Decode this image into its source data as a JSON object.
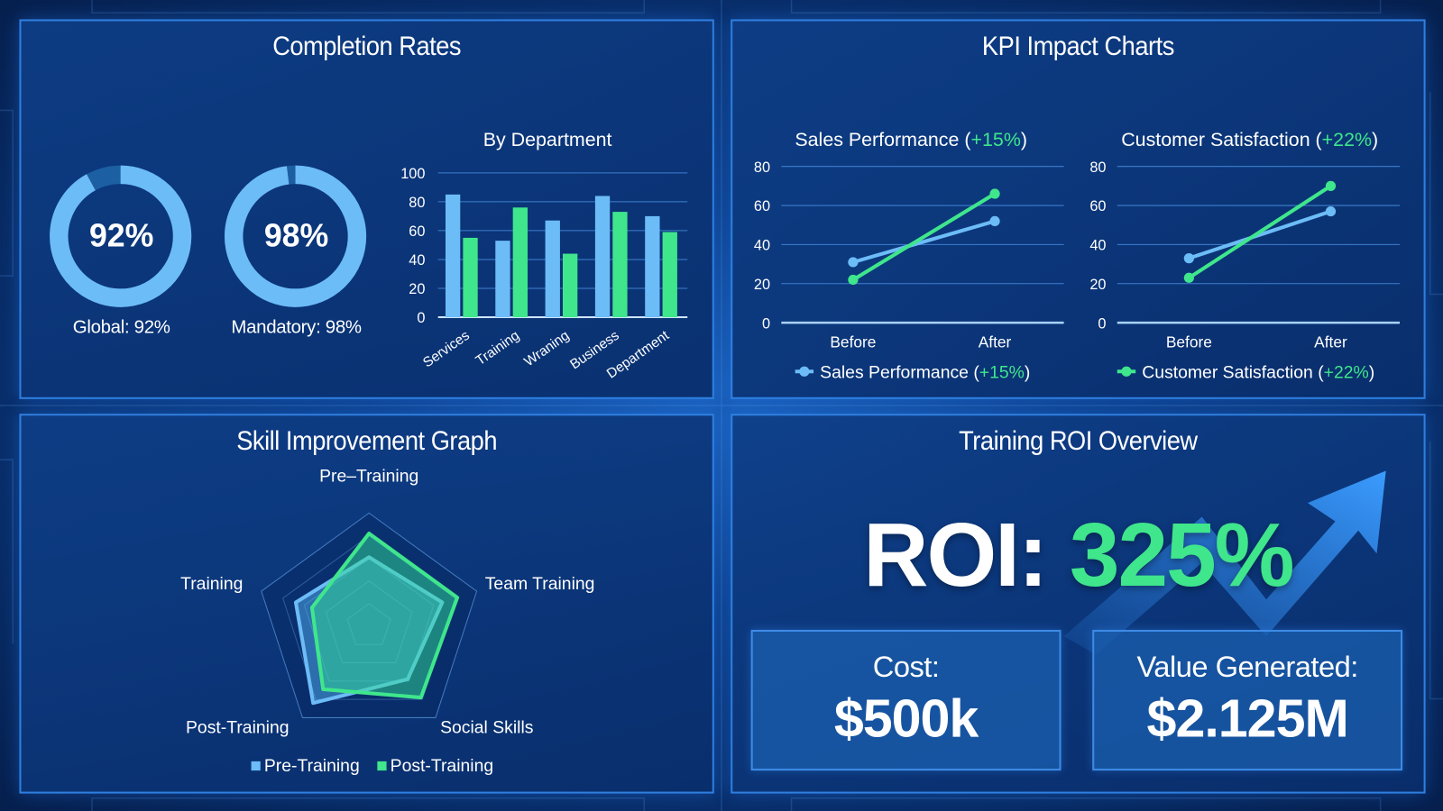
{
  "colors": {
    "blue": "#6cbcf7",
    "green": "#3fe68c",
    "panel_border": "#2f7fe0",
    "ring_dark": "#1d5fa3"
  },
  "completion": {
    "title": "Completion Rates",
    "donuts": [
      {
        "value_label": "92%",
        "caption": "Global: 92%",
        "percent": 92
      },
      {
        "value_label": "98%",
        "caption": "Mandatory: 98%",
        "percent": 98
      }
    ],
    "chart_data": {
      "type": "bar",
      "title": "By Department",
      "categories": [
        "Services",
        "Training",
        "Wraning",
        "Business",
        "Department"
      ],
      "series": [
        {
          "values": [
            85,
            53,
            67,
            84,
            70
          ]
        },
        {
          "values": [
            55,
            76,
            44,
            73,
            59
          ]
        }
      ],
      "ylim": [
        0,
        100
      ],
      "yticks": [
        "0",
        "20",
        "40",
        "60",
        "80",
        "100"
      ],
      "grid": true
    }
  },
  "kpi": {
    "title": "KPI Impact Charts",
    "charts": [
      {
        "type": "line",
        "title_name": "Sales Performance (",
        "title_delta": "+15%",
        "title_close": ")",
        "categories": [
          "Before",
          "After"
        ],
        "ylim": [
          0,
          80
        ],
        "yticks": [
          "0",
          "20",
          "40",
          "60",
          "80"
        ],
        "series": [
          {
            "color": "blue",
            "values": [
              31,
              52
            ]
          },
          {
            "color": "green",
            "values": [
              22,
              66
            ]
          }
        ],
        "legend": {
          "name": "Sales Performance (",
          "delta": "+15%",
          "close": ")",
          "marker": "blue"
        }
      },
      {
        "type": "line",
        "title_name": "Customer Satisfaction (",
        "title_delta": "+22%",
        "title_close": ")",
        "categories": [
          "Before",
          "After"
        ],
        "ylim": [
          0,
          80
        ],
        "yticks": [
          "0",
          "20",
          "40",
          "60",
          "80"
        ],
        "series": [
          {
            "color": "blue",
            "values": [
              33,
              57
            ]
          },
          {
            "color": "green",
            "values": [
              23,
              70
            ]
          }
        ],
        "legend": {
          "name": "Customer Satisfaction (",
          "delta": "+22%",
          "close": ")",
          "marker": "green"
        }
      }
    ]
  },
  "skills": {
    "title": "Skill Improvement Graph",
    "chart_data": {
      "type": "radar",
      "axes": [
        "Pre–Training",
        "Team Training",
        "Social Skills",
        "Post-Training",
        "Training"
      ],
      "rmax": 100,
      "rings": 5,
      "series": [
        {
          "name": "Pre-Training",
          "color": "blue",
          "values": [
            61,
            68,
            58,
            84,
            68
          ]
        },
        {
          "name": "Post-Training",
          "color": "green",
          "values": [
            82,
            82,
            78,
            69,
            53
          ]
        }
      ]
    }
  },
  "roi": {
    "title": "Training ROI Overview",
    "roi_label": "ROI: ",
    "roi_value": "325%",
    "cost_label": "Cost:",
    "cost_value": "$500k",
    "value_label": "Value Generated:",
    "value_value": "$2.125M",
    "arrow_icon": "trend-up-arrow"
  }
}
